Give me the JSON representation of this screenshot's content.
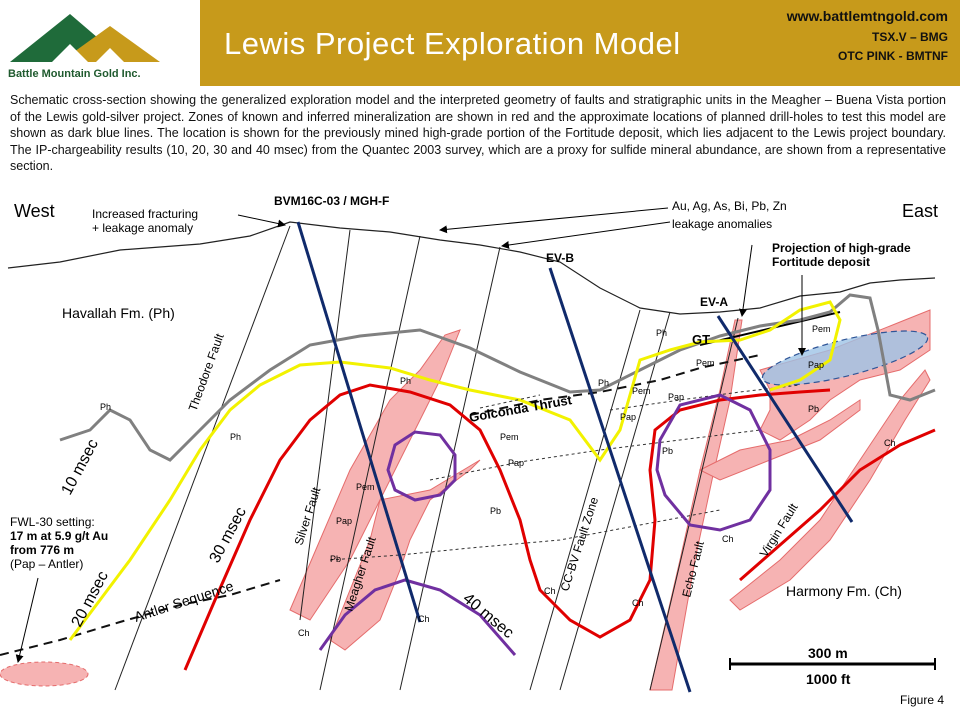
{
  "header": {
    "logo_text": "Battle Mountain Gold Inc.",
    "title": "Lewis Project Exploration Model",
    "website": "www.battlemtngold.com",
    "ticker_tsx": "TSX.V – BMG",
    "ticker_otc": "OTC PINK - BMTNF"
  },
  "description": "Schematic cross-section showing the generalized exploration model and the interpreted geometry of faults and stratigraphic units in the Meagher – Buena Vista portion of the Lewis gold-silver project. Zones of known and inferred mineralization are shown in red and the approximate locations of planned drill-holes to test this model are shown as dark blue lines. The location is shown for the previously mined high-grade portion of the Fortitude deposit, which lies adjacent to the Lewis project boundary. The IP-chargeability results (10, 20, 30 and 40 msec) from the Quantec 2003 survey, which are a proxy for sulfide mineral abundance, are shown from a representative section.",
  "section": {
    "west": "West",
    "east": "East",
    "fracturing_1": "Increased fracturing",
    "fracturing_2": "+ leakage anomaly",
    "drillhole_main": "BVM16C-03 / MGH-F",
    "anomaly_1": "Au, Ag, As, Bi, Pb, Zn",
    "anomaly_2": "leakage anomalies",
    "ev_b": "EV-B",
    "ev_a": "EV-A",
    "fortitude_1": "Projection of high-grade",
    "fortitude_2": "Fortitude deposit",
    "havallah": "Havallah Fm. (Ph)",
    "harmony": "Harmony Fm. (Ch)",
    "gt": "GT",
    "golconda": "Golconda Thrust",
    "antler": "Antler Sequence",
    "theodore": "Theodore Fault",
    "silver": "Silver Fault",
    "meagher": "Meagher Fault",
    "ccbv": "CC-BV Fault Zone",
    "echo": "Echo Fault",
    "virgin": "Virgin Fault",
    "msec10": "10 msec",
    "msec20": "20 msec",
    "msec30": "30 msec",
    "msec40": "40 msec",
    "fwl_1": "FWL-30 setting:",
    "fwl_2": "17 m at 5.9 g/t Au",
    "fwl_3": "from 776 m",
    "fwl_4": "(Pap – Antler)",
    "scale_m": "300 m",
    "scale_ft": "1000 ft",
    "figure": "Figure 4",
    "units": {
      "ph": "Ph",
      "pem": "Pem",
      "pap": "Pap",
      "pb": "Pb",
      "ch": "Ch"
    }
  },
  "colors": {
    "header_gold": "#c79a1b",
    "drillhole_blue": "#102a6b",
    "mineral_red": "#e00000",
    "zone_pink": "#f6b3b3",
    "ip_10_gray": "#808080",
    "ip_20_yellow": "#f2f200",
    "ip_40_purple": "#7030a0",
    "fortitude_blue": "#9dc3e6"
  }
}
